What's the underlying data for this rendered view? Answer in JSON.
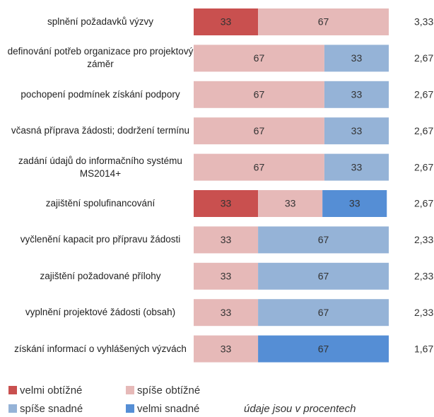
{
  "chart_data": {
    "type": "stacked-bar-horizontal",
    "categories": [
      "splnění požadavků výzvy",
      "definování potřeb organizace pro projektový záměr",
      "pochopení podmínek získání podpory",
      "včasná příprava žádosti; dodržení termínu",
      "zadání údajů do informačního systému MS2014+",
      "zajištění spolufinancování",
      "vyčlenění kapacit pro přípravu žádosti",
      "zajištění požadované přílohy",
      "vyplnění projektové žádosti (obsah)",
      "získání informací o vyhlášených výzvách"
    ],
    "series": [
      {
        "name": "velmi obtížné",
        "color": "#c9504f",
        "values": [
          33,
          null,
          null,
          null,
          null,
          33,
          null,
          null,
          null,
          null
        ]
      },
      {
        "name": "spíše obtížné",
        "color": "#e6b9b8",
        "values": [
          67,
          67,
          67,
          67,
          67,
          33,
          33,
          33,
          33,
          33
        ]
      },
      {
        "name": "spíše snadné",
        "color": "#95b3d7",
        "values": [
          null,
          33,
          33,
          33,
          33,
          null,
          67,
          67,
          67,
          null
        ]
      },
      {
        "name": "velmi snadné",
        "color": "#558ed5",
        "values": [
          null,
          null,
          null,
          null,
          null,
          33,
          null,
          null,
          null,
          67
        ]
      }
    ],
    "mean_values": [
      3.33,
      2.67,
      2.67,
      2.67,
      2.67,
      2.67,
      2.33,
      2.33,
      2.33,
      1.67
    ],
    "mean_labels": [
      "3,33",
      "2,67",
      "2,67",
      "2,67",
      "2,67",
      "2,67",
      "2,33",
      "2,33",
      "2,33",
      "1,67"
    ],
    "xlim": [
      0,
      100
    ],
    "note": "údaje jsou v procentech"
  }
}
